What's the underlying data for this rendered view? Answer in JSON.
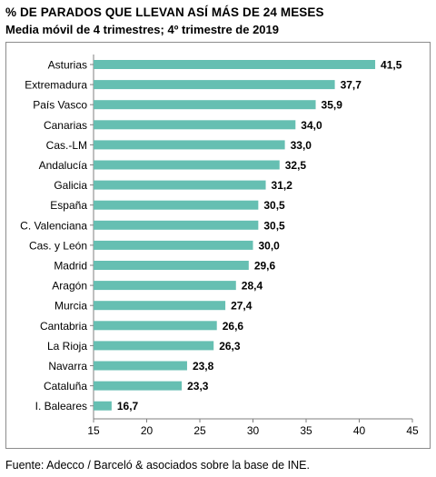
{
  "header": {
    "title": "% DE PARADOS QUE LLEVAN ASÍ MÁS DE 24 MESES",
    "subtitle": "Media móvil de 4 trimestres; 4º trimestre de 2019"
  },
  "footer": {
    "source": "Fuente: Adecco / Barceló & asociados sobre la base de INE."
  },
  "colors": {
    "bar": "#66bfb2",
    "axis": "#7f7f7f",
    "text": "#000000"
  },
  "chart_data": {
    "type": "bar",
    "orientation": "horizontal",
    "categories": [
      "Asturias",
      "Extremadura",
      "País Vasco",
      "Canarias",
      "Cas.-LM",
      "Andalucía",
      "Galicia",
      "España",
      "C. Valenciana",
      "Cas. y León",
      "Madrid",
      "Aragón",
      "Murcia",
      "Cantabria",
      "La Rioja",
      "Navarra",
      "Cataluña",
      "I. Baleares"
    ],
    "values": [
      41.5,
      37.7,
      35.9,
      34.0,
      33.0,
      32.5,
      31.2,
      30.5,
      30.5,
      30.0,
      29.6,
      28.4,
      27.4,
      26.6,
      26.3,
      23.8,
      23.3,
      16.7
    ],
    "value_labels": [
      "41,5",
      "37,7",
      "35,9",
      "34,0",
      "33,0",
      "32,5",
      "31,2",
      "30,5",
      "30,5",
      "30,0",
      "29,6",
      "28,4",
      "27,4",
      "26,6",
      "26,3",
      "23,8",
      "23,3",
      "16,7"
    ],
    "xlim": [
      15,
      45
    ],
    "xticks": [
      15,
      20,
      25,
      30,
      35,
      40,
      45
    ],
    "xtick_labels": [
      "15",
      "20",
      "25",
      "30",
      "35",
      "40",
      "45"
    ],
    "grid": false,
    "legend": "none"
  }
}
